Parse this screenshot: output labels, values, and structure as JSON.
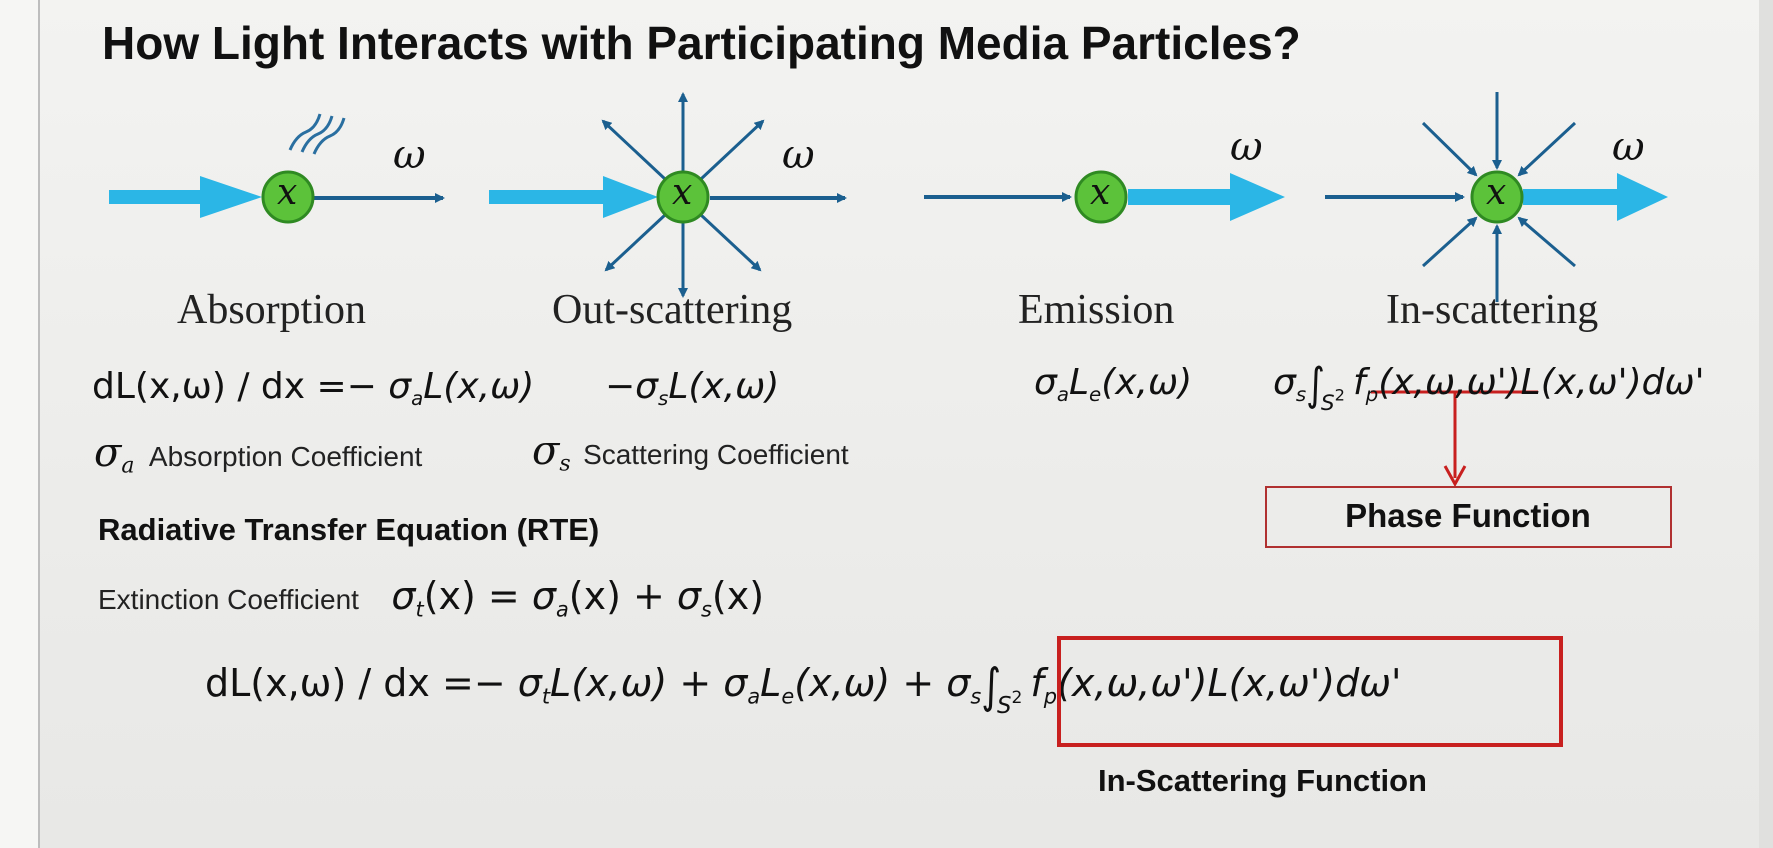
{
  "title": "How Light Interacts with Participating Media Particles?",
  "colors": {
    "beam": "#2bb6e6",
    "arrow_dark": "#1b5f8f",
    "particle_fill": "#5cc23a",
    "particle_stroke": "#2f8a22",
    "callout_red": "#c8201f"
  },
  "panels": [
    {
      "label": "Absorption",
      "particle": "x",
      "direction": "ω"
    },
    {
      "label": "Out-scattering",
      "particle": "x",
      "direction": "ω"
    },
    {
      "label": "Emission",
      "particle": "x",
      "direction": "ω"
    },
    {
      "label": "In-scattering",
      "particle": "x",
      "direction": "ω"
    }
  ],
  "equations": {
    "absorption_lhs": "dL(x,ω) / dx =− ",
    "sigma": "σ",
    "a": "a",
    "s": "s",
    "t": "t",
    "e": "e",
    "sub_e": "e",
    "sub_p": "p",
    "L_xw": "L(x,ω)",
    "Le_xw": "(x,ω)",
    "minus": "−",
    "integral": "∫",
    "S": "S",
    "two": "2",
    "f": "f",
    "fp_args": "(x,ω,ω')",
    "L_xw_prime": "L(x,ω')",
    "dw_prime": "dω'",
    "L": "L",
    "rte_lhs": "dL(x,ω) / dx =− ",
    "plus": " + "
  },
  "coefficients": {
    "absorption_text": "Absorption Coefficient",
    "scattering_text": "Scattering Coefficient"
  },
  "rte": {
    "heading": "Radiative Transfer Equation (RTE)",
    "extinction_label": "Extinction Coefficient",
    "ext_open_a": "(x) = ",
    "ext_open_b": "(x) + ",
    "ext_open_c": "(x)"
  },
  "callouts": {
    "phase_function": "Phase Function",
    "in_scattering_function": "In-Scattering Function"
  }
}
